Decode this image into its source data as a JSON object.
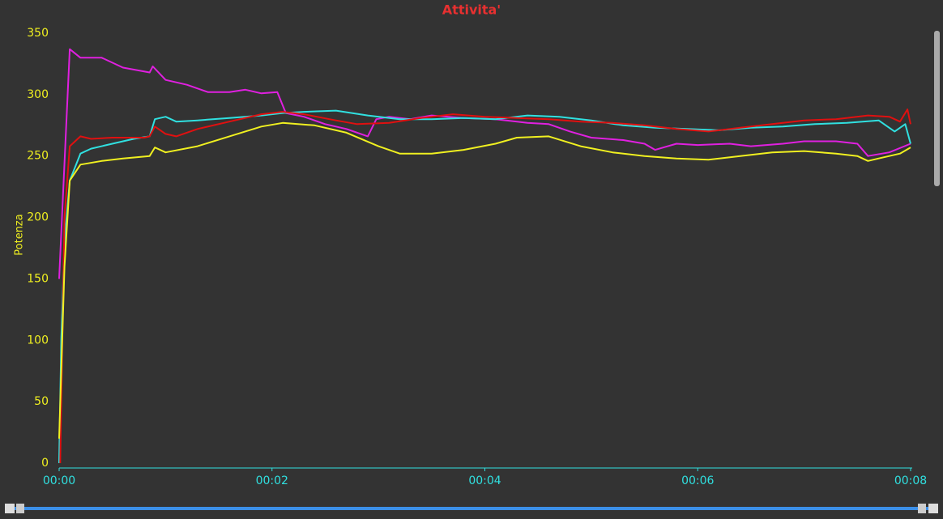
{
  "chart_data": {
    "type": "line",
    "title": "Attivita'",
    "y_label": "Potenza",
    "xlim": [
      0,
      8
    ],
    "ylim": [
      0,
      350
    ],
    "xticks": [
      {
        "value": 0,
        "label": "00:00"
      },
      {
        "value": 2,
        "label": "00:02"
      },
      {
        "value": 4,
        "label": "00:04"
      },
      {
        "value": 6,
        "label": "00:06"
      },
      {
        "value": 8,
        "label": "00:08"
      }
    ],
    "yticks": [
      0,
      50,
      100,
      150,
      200,
      250,
      300,
      350
    ],
    "series": [
      {
        "color": "#e020e0",
        "x": [
          0,
          0.1,
          0.2,
          0.4,
          0.6,
          0.85,
          0.88,
          1.0,
          1.2,
          1.4,
          1.6,
          1.75,
          1.9,
          2.05,
          2.13,
          2.3,
          2.5,
          2.7,
          2.9,
          2.98,
          3.1,
          3.3,
          3.5,
          3.8,
          4.1,
          4.4,
          4.6,
          4.8,
          5.0,
          5.3,
          5.5,
          5.6,
          5.8,
          6.0,
          6.3,
          6.5,
          6.8,
          7.0,
          7.3,
          7.5,
          7.6,
          7.8,
          8.0
        ],
        "values": [
          150,
          337,
          330,
          330,
          322,
          318,
          323,
          312,
          308,
          302,
          302,
          304,
          301,
          302,
          285,
          282,
          276,
          272,
          266,
          280,
          282,
          280,
          283,
          281,
          280,
          277,
          276,
          270,
          265,
          263,
          260,
          255,
          260,
          259,
          260,
          258,
          260,
          262,
          262,
          260,
          250,
          253,
          260
        ]
      },
      {
        "color": "#30e0e0",
        "x": [
          0,
          0.02,
          0.05,
          0.1,
          0.2,
          0.3,
          0.5,
          0.7,
          0.85,
          0.9,
          1.0,
          1.1,
          1.3,
          1.6,
          1.9,
          2.1,
          2.3,
          2.6,
          2.9,
          3.2,
          3.5,
          3.8,
          4.1,
          4.4,
          4.7,
          5.0,
          5.3,
          5.6,
          5.9,
          6.2,
          6.5,
          6.8,
          7.1,
          7.4,
          7.7,
          7.85,
          7.95,
          8.0
        ],
        "values": [
          0,
          100,
          180,
          230,
          252,
          256,
          260,
          264,
          266,
          280,
          282,
          278,
          279,
          281,
          283,
          285,
          286,
          287,
          283,
          280,
          280,
          281,
          280,
          283,
          282,
          279,
          275,
          273,
          272,
          271,
          273,
          274,
          276,
          277,
          279,
          270,
          276,
          260
        ]
      },
      {
        "color": "#e01010",
        "x": [
          0.01,
          0.05,
          0.1,
          0.2,
          0.3,
          0.5,
          0.8,
          0.85,
          0.9,
          1.0,
          1.1,
          1.3,
          1.6,
          1.9,
          2.1,
          2.3,
          2.6,
          2.8,
          3.1,
          3.4,
          3.7,
          4.0,
          4.3,
          4.6,
          4.9,
          5.2,
          5.5,
          5.8,
          6.1,
          6.4,
          6.7,
          7.0,
          7.3,
          7.6,
          7.8,
          7.9,
          7.97,
          8.0
        ],
        "values": [
          0,
          200,
          258,
          266,
          264,
          265,
          265,
          266,
          274,
          268,
          266,
          272,
          278,
          284,
          286,
          284,
          279,
          276,
          277,
          281,
          284,
          282,
          281,
          280,
          278,
          277,
          275,
          272,
          270,
          273,
          276,
          279,
          280,
          283,
          282,
          278,
          288,
          276
        ]
      },
      {
        "color": "#f0f020",
        "x": [
          0,
          0.05,
          0.1,
          0.2,
          0.4,
          0.6,
          0.85,
          0.9,
          1.0,
          1.3,
          1.6,
          1.9,
          2.1,
          2.4,
          2.7,
          3.0,
          3.2,
          3.5,
          3.8,
          4.1,
          4.3,
          4.6,
          4.9,
          5.2,
          5.5,
          5.8,
          6.1,
          6.4,
          6.7,
          7.0,
          7.3,
          7.5,
          7.6,
          7.7,
          7.9,
          8.0
        ],
        "values": [
          20,
          160,
          230,
          243,
          246,
          248,
          250,
          257,
          253,
          258,
          266,
          274,
          277,
          275,
          269,
          258,
          252,
          252,
          255,
          260,
          265,
          266,
          258,
          253,
          250,
          248,
          247,
          250,
          253,
          254,
          252,
          250,
          246,
          248,
          252,
          257
        ]
      }
    ]
  }
}
